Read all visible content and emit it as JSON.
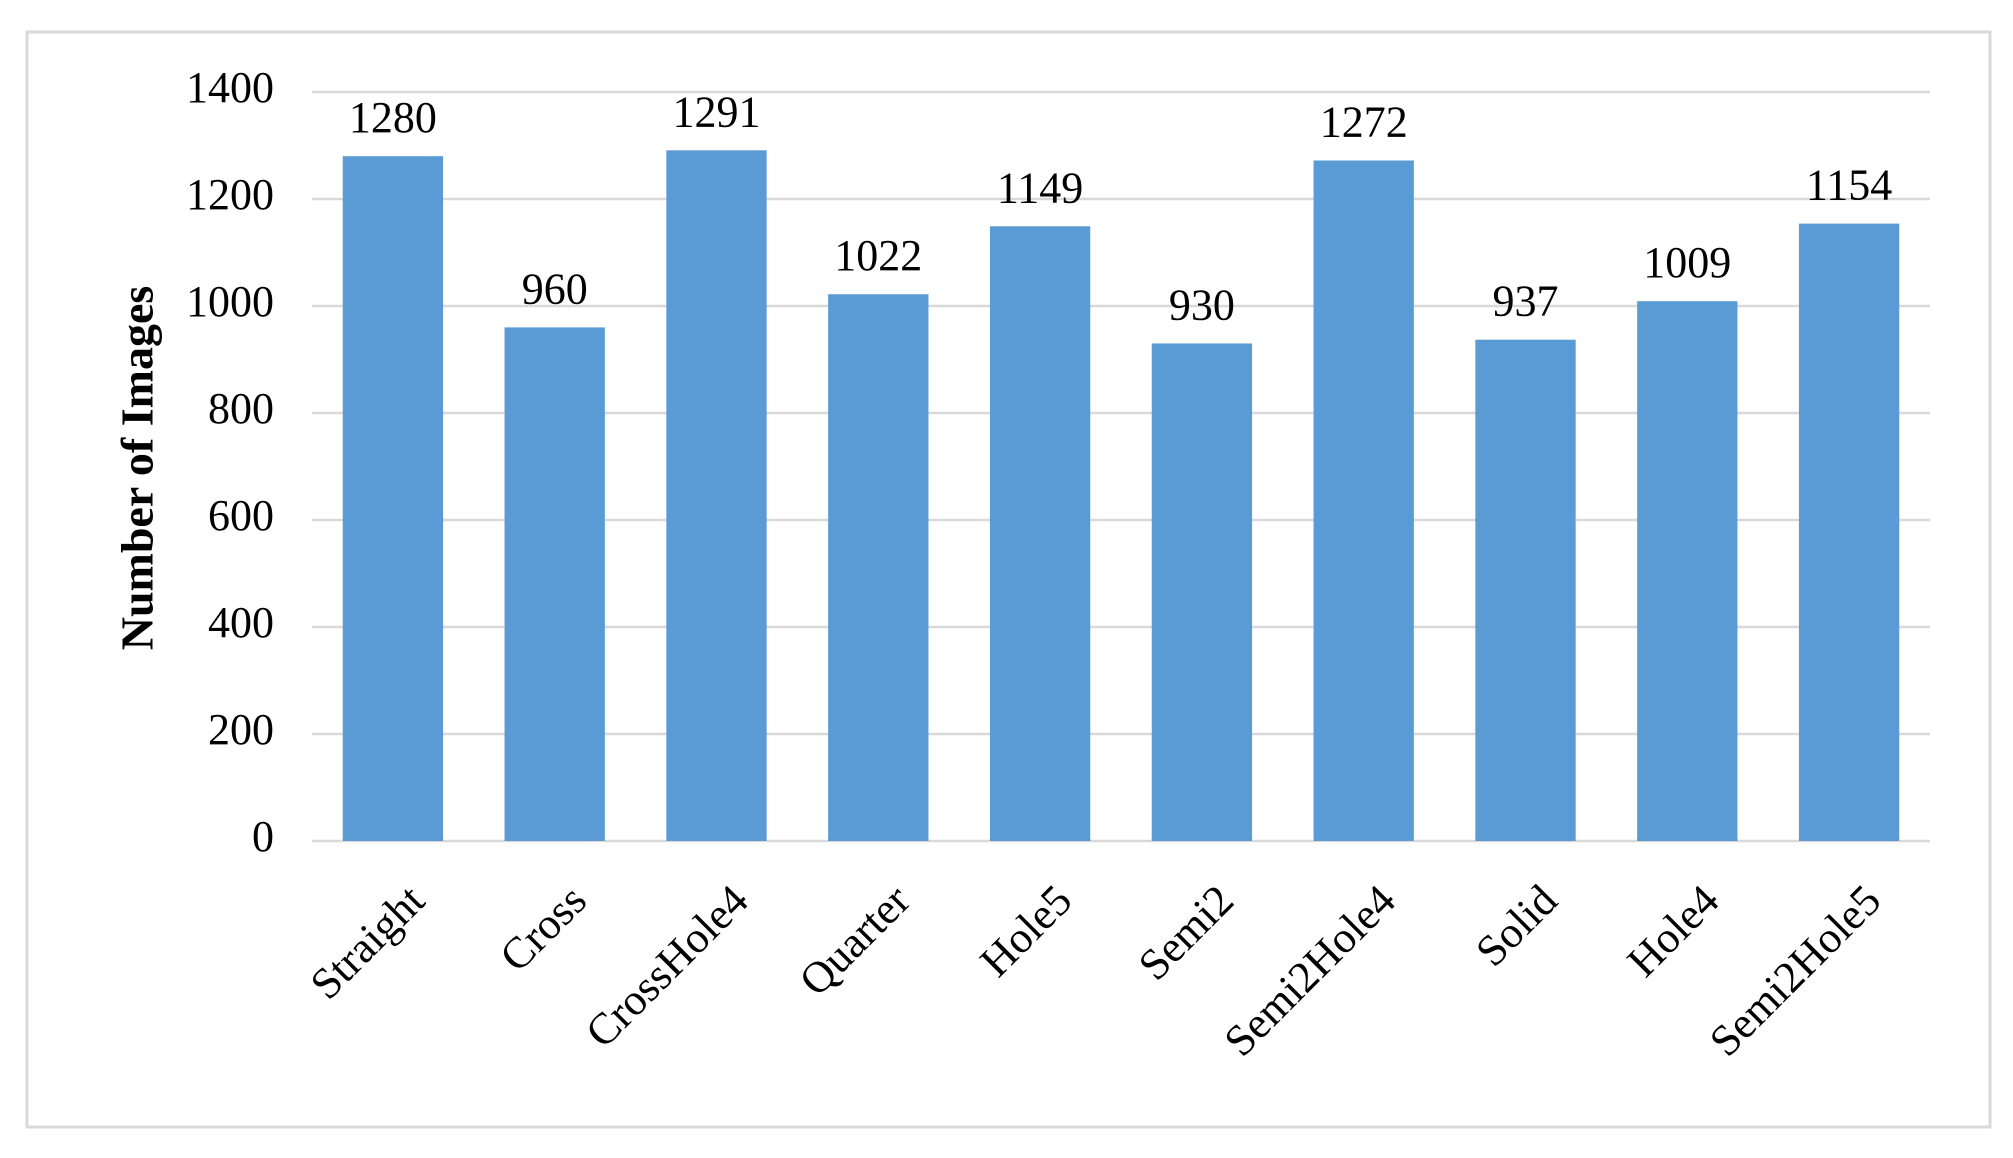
{
  "chart_data": {
    "type": "bar",
    "y_axis_label": "Number of Images",
    "categories": [
      "Straight",
      "Cross",
      "CrossHole4",
      "Quarter",
      "Hole5",
      "Semi2",
      "Semi2Hole4",
      "Solid",
      "Hole4",
      "Semi2Hole5"
    ],
    "values": [
      1280,
      960,
      1291,
      1022,
      1149,
      930,
      1272,
      937,
      1009,
      1154
    ],
    "color": "#5b9bd5",
    "ylim": [
      0,
      1400
    ],
    "yticks": [
      0,
      200,
      400,
      600,
      800,
      1000,
      1200,
      1400
    ],
    "grid": true,
    "data_labels": true
  }
}
